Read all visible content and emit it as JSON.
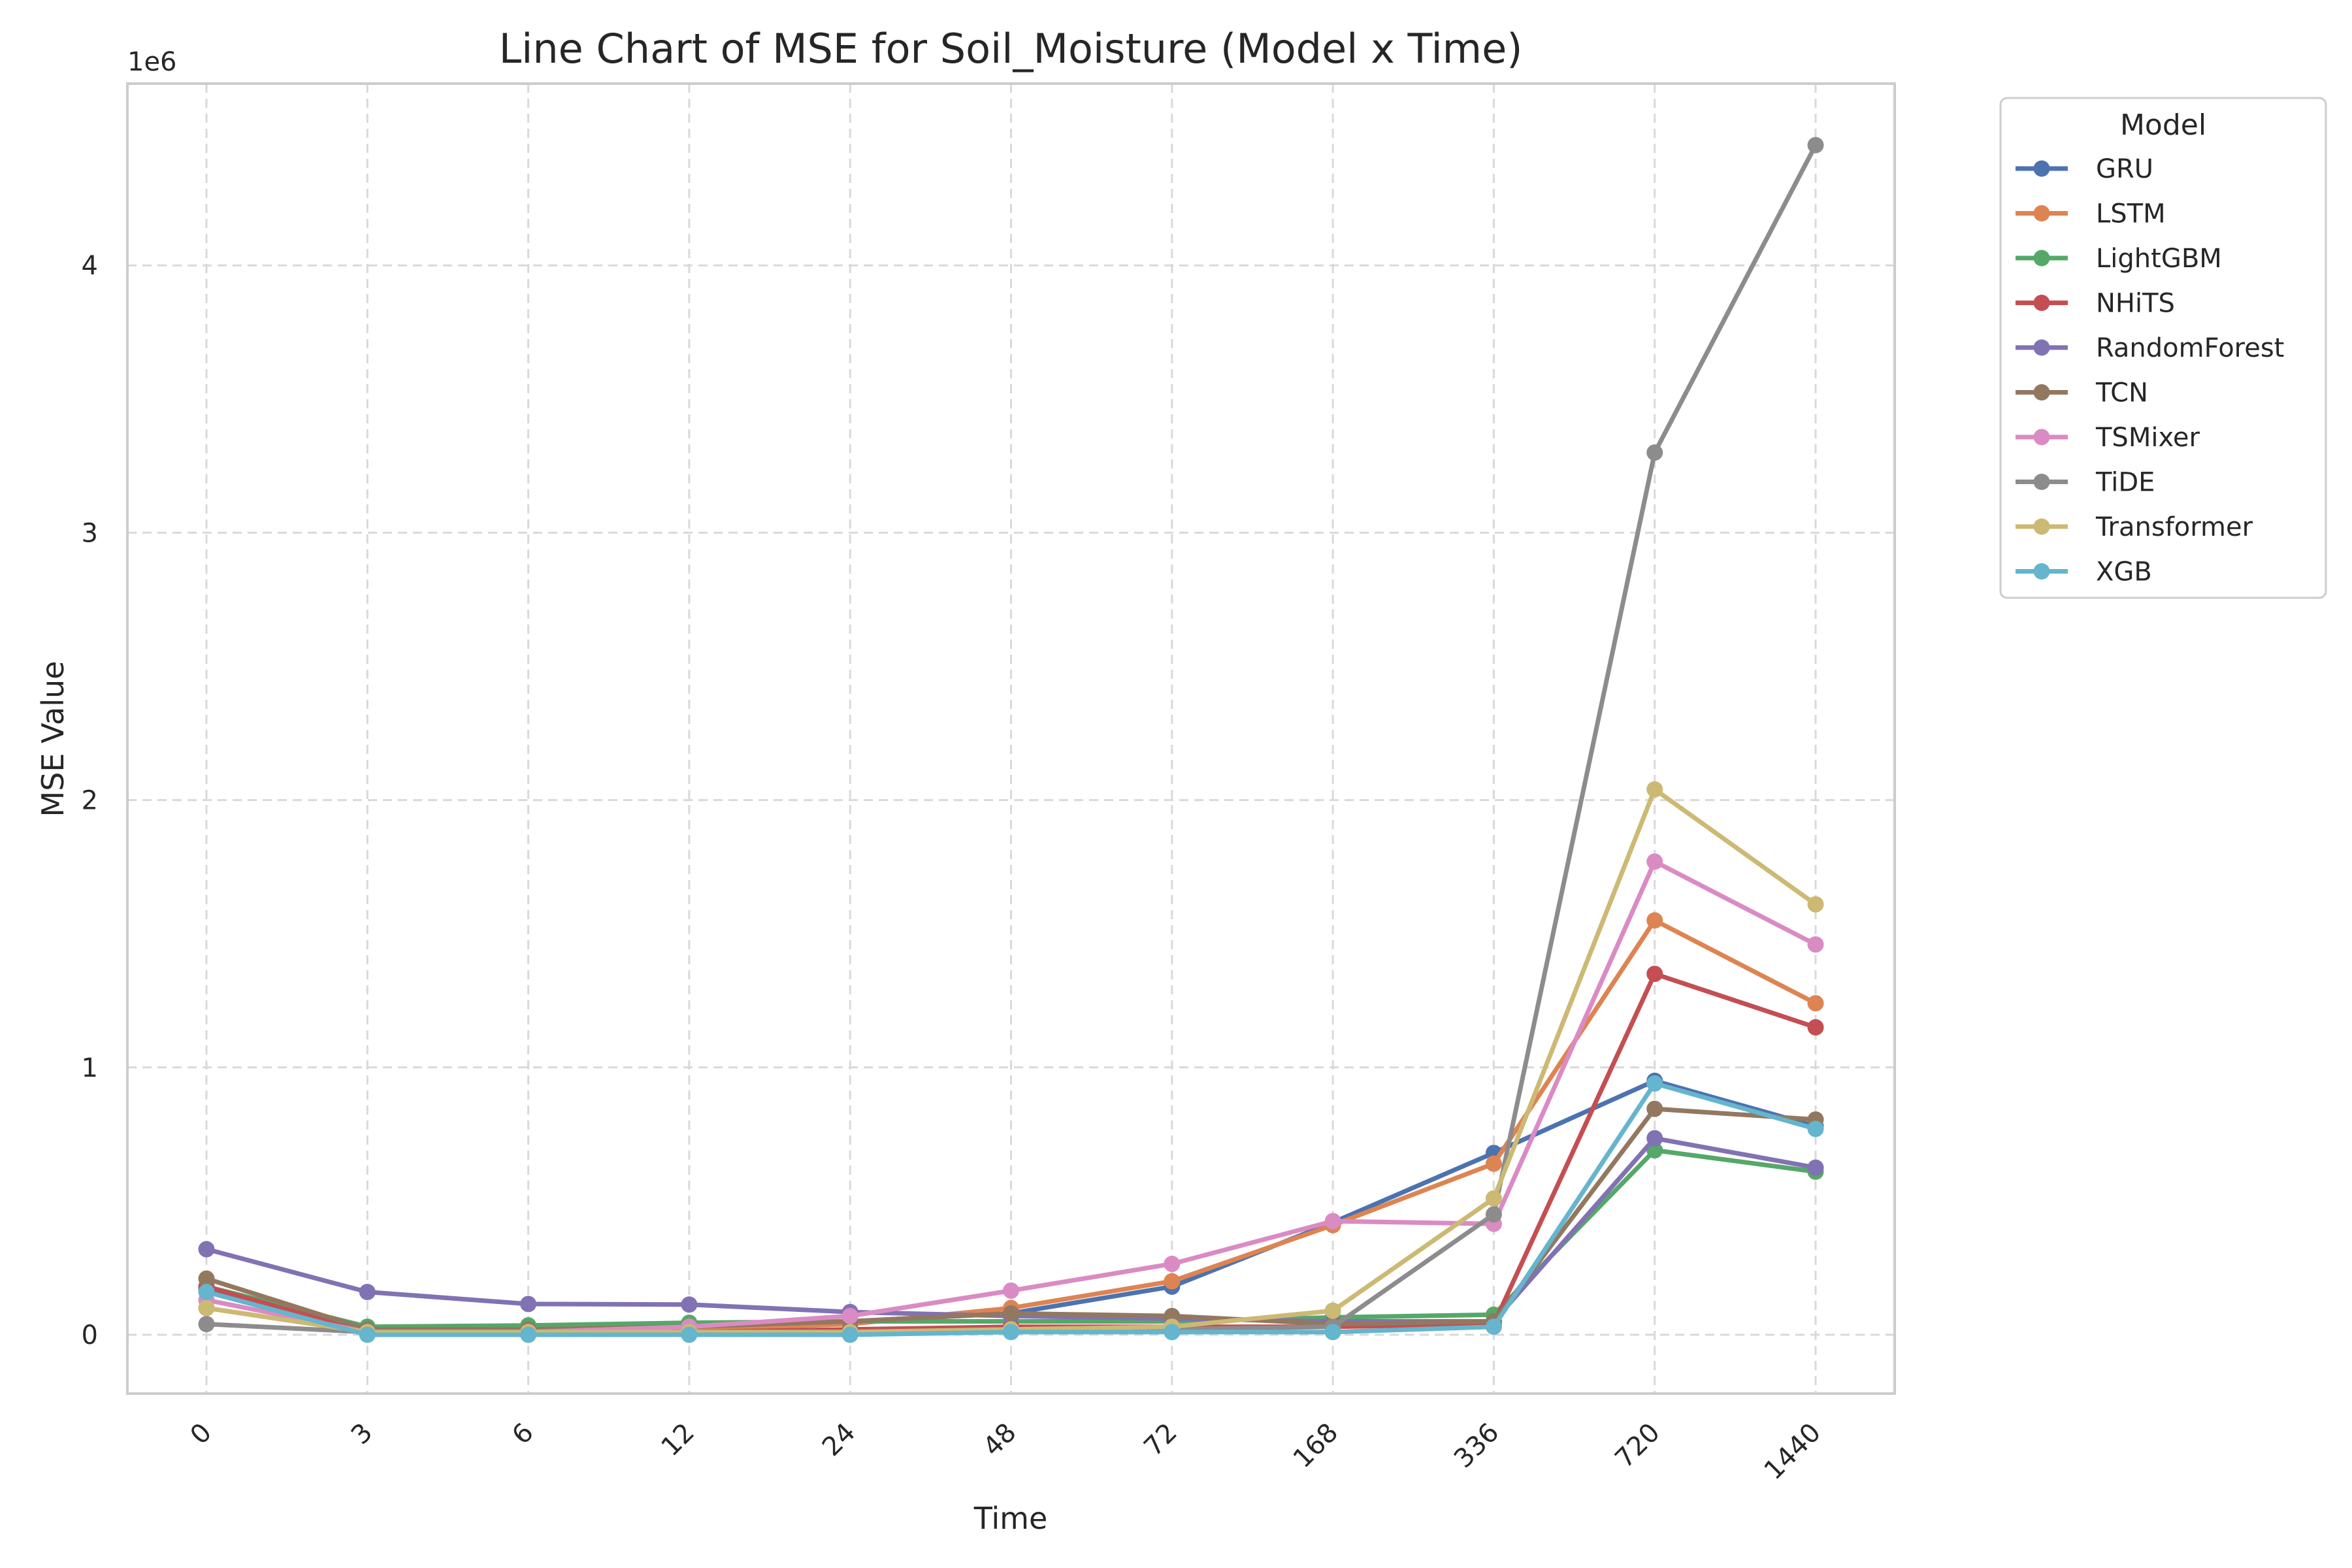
{
  "chart_data": {
    "type": "line",
    "title": "Line Chart of MSE for Soil_Moisture (Model x Time)",
    "xlabel": "Time",
    "ylabel": "MSE Value",
    "y_scale_label": "1e6",
    "x": [
      "0",
      "3",
      "6",
      "12",
      "24",
      "48",
      "72",
      "168",
      "336",
      "720",
      "1440"
    ],
    "y_ticks": [
      0,
      1,
      2,
      3,
      4
    ],
    "ylim": [
      -0.22,
      4.68
    ],
    "grid": true,
    "legend_title": "Model",
    "legend_position": "outside upper right",
    "series": [
      {
        "name": "GRU",
        "color": "#4c72b0",
        "values": [
          0.17,
          0.01,
          0.01,
          0.02,
          0.05,
          0.08,
          0.18,
          0.42,
          0.68,
          0.95,
          0.78
        ]
      },
      {
        "name": "LSTM",
        "color": "#dd8452",
        "values": [
          0.1,
          0.01,
          0.01,
          0.02,
          0.04,
          0.1,
          0.2,
          0.41,
          0.64,
          1.55,
          1.24
        ]
      },
      {
        "name": "LightGBM",
        "color": "#55a868",
        "values": [
          0.18,
          0.03,
          0.035,
          0.045,
          0.05,
          0.05,
          0.05,
          0.065,
          0.075,
          0.69,
          0.61
        ]
      },
      {
        "name": "NHiTS",
        "color": "#c44e52",
        "values": [
          0.18,
          0.01,
          0.01,
          0.01,
          0.02,
          0.03,
          0.03,
          0.03,
          0.04,
          1.35,
          1.15
        ]
      },
      {
        "name": "RandomForest",
        "color": "#8172b3",
        "values": [
          0.32,
          0.16,
          0.115,
          0.113,
          0.085,
          0.07,
          0.06,
          0.05,
          0.05,
          0.735,
          0.625
        ]
      },
      {
        "name": "TCN",
        "color": "#937860",
        "values": [
          0.21,
          0.02,
          0.02,
          0.03,
          0.05,
          0.08,
          0.07,
          0.04,
          0.05,
          0.845,
          0.805
        ]
      },
      {
        "name": "TSMixer",
        "color": "#da8bc3",
        "values": [
          0.13,
          0.01,
          0.01,
          0.03,
          0.07,
          0.165,
          0.265,
          0.425,
          0.415,
          1.77,
          1.46
        ]
      },
      {
        "name": "TiDE",
        "color": "#8c8c8c",
        "values": [
          0.04,
          0.01,
          0.01,
          0.01,
          0.01,
          0.02,
          0.02,
          0.03,
          0.45,
          3.3,
          4.45
        ]
      },
      {
        "name": "Transformer",
        "color": "#ccb974",
        "values": [
          0.1,
          0.01,
          0.01,
          0.01,
          0.01,
          0.02,
          0.03,
          0.09,
          0.51,
          2.04,
          1.61
        ]
      },
      {
        "name": "XGB",
        "color": "#64b5cd",
        "values": [
          0.16,
          0.0,
          0.0,
          0.0,
          0.0,
          0.01,
          0.01,
          0.01,
          0.03,
          0.94,
          0.77
        ]
      }
    ]
  }
}
